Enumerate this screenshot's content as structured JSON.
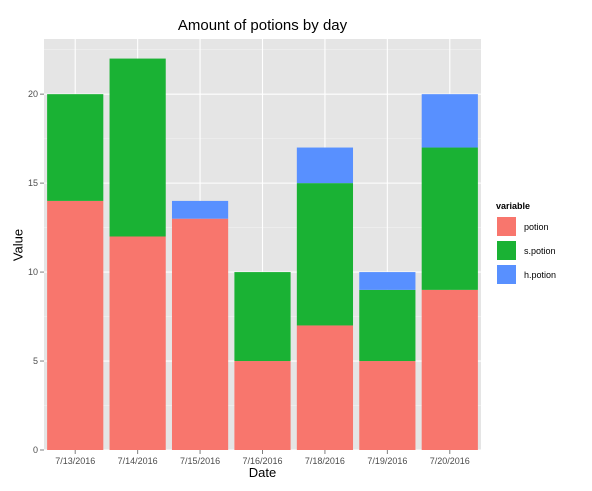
{
  "chart_data": {
    "type": "bar",
    "stacked": true,
    "title": "Amount of potions by day",
    "xlabel": "Date",
    "ylabel": "Value",
    "categories": [
      "7/13/2016",
      "7/14/2016",
      "7/15/2016",
      "7/16/2016",
      "7/18/2016",
      "7/19/2016",
      "7/20/2016"
    ],
    "series": [
      {
        "name": "potion",
        "color": "#f8766d",
        "values": [
          14,
          12,
          13,
          5,
          7,
          5,
          9
        ]
      },
      {
        "name": "s.potion",
        "color": "#1ab234",
        "values": [
          6,
          10,
          0,
          5,
          8,
          4,
          8
        ]
      },
      {
        "name": "h.potion",
        "color": "#5890ff",
        "values": [
          0,
          0,
          1,
          0,
          2,
          1,
          3
        ]
      }
    ],
    "ylim": [
      0,
      23.1
    ],
    "yticks": [
      0,
      5,
      10,
      15,
      20
    ],
    "grid": true,
    "panel_background": "#e5e5e5",
    "legend": {
      "title": "variable",
      "position": "right"
    }
  }
}
